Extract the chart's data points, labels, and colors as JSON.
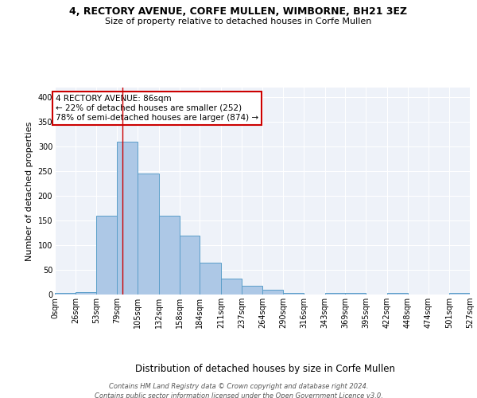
{
  "title_line1": "4, RECTORY AVENUE, CORFE MULLEN, WIMBORNE, BH21 3EZ",
  "title_line2": "Size of property relative to detached houses in Corfe Mullen",
  "xlabel": "Distribution of detached houses by size in Corfe Mullen",
  "ylabel": "Number of detached properties",
  "bin_edges": [
    0,
    26,
    53,
    79,
    105,
    132,
    158,
    184,
    211,
    237,
    264,
    290,
    316,
    343,
    369,
    395,
    422,
    448,
    474,
    501,
    527
  ],
  "bar_heights": [
    3,
    5,
    160,
    310,
    245,
    160,
    120,
    65,
    33,
    17,
    9,
    3,
    0,
    3,
    3,
    0,
    3,
    0,
    0,
    3
  ],
  "bar_color": "#adc8e6",
  "bar_edge_color": "#5a9ec9",
  "property_size": 86,
  "red_line_color": "#cc0000",
  "annotation_text": "4 RECTORY AVENUE: 86sqm\n← 22% of detached houses are smaller (252)\n78% of semi-detached houses are larger (874) →",
  "annotation_box_color": "white",
  "annotation_box_edge_color": "#cc0000",
  "ylim": [
    0,
    420
  ],
  "yticks": [
    0,
    50,
    100,
    150,
    200,
    250,
    300,
    350,
    400
  ],
  "background_color": "#eef2f9",
  "grid_color": "white",
  "footer_text": "Contains HM Land Registry data © Crown copyright and database right 2024.\nContains public sector information licensed under the Open Government Licence v3.0.",
  "title_fontsize": 9,
  "subtitle_fontsize": 8,
  "xlabel_fontsize": 8.5,
  "ylabel_fontsize": 8,
  "tick_fontsize": 7,
  "annotation_fontsize": 7.5,
  "footer_fontsize": 6
}
